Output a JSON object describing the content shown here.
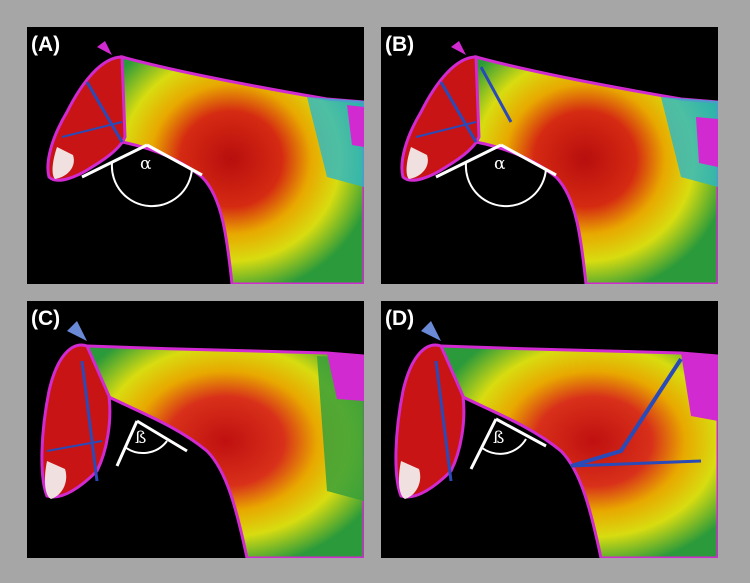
{
  "panels": [
    {
      "label": "(A)",
      "angle_symbol": "α"
    },
    {
      "label": "(B)",
      "angle_symbol": "α"
    },
    {
      "label": "(C)",
      "angle_symbol": "ß"
    },
    {
      "label": "(D)",
      "angle_symbol": "ß"
    }
  ],
  "colors": {
    "frame": "#a6a6a6",
    "background": "#000000",
    "hot": "#c81414",
    "warm": "#e8d800",
    "mid": "#3aa03a",
    "cool": "#2ab8c8",
    "edge": "#d02ad0",
    "line": "#ffffff"
  }
}
